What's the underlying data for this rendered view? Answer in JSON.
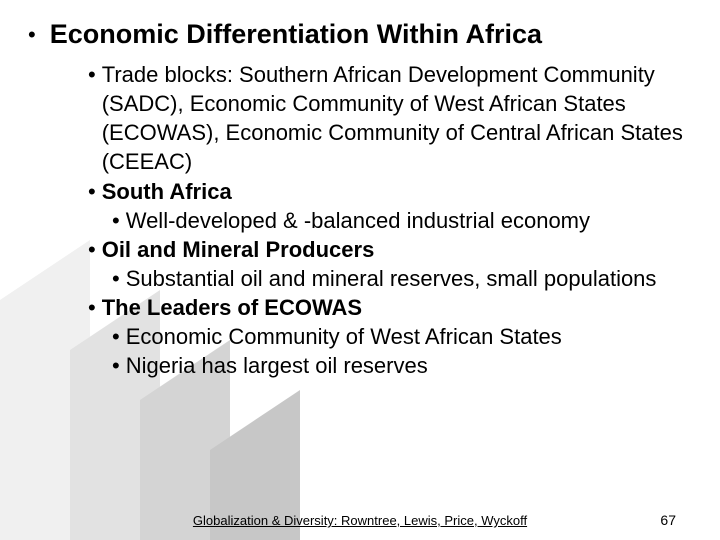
{
  "title": "Economic Differentiation Within Africa",
  "items": [
    {
      "level": 1,
      "bold": false,
      "text": "Trade blocks: Southern African Development Community (SADC), Economic Community of West African States (ECOWAS), Economic Community of Central African States (CEEAC)"
    },
    {
      "level": 1,
      "bold": true,
      "text": "South Africa"
    },
    {
      "level": 2,
      "bold": false,
      "text": "Well-developed & -balanced industrial economy"
    },
    {
      "level": 1,
      "bold": true,
      "text": "Oil and Mineral Producers"
    },
    {
      "level": 2,
      "bold": false,
      "text": "Substantial oil and mineral reserves, small populations"
    },
    {
      "level": 1,
      "bold": true,
      "text": "The Leaders of ECOWAS"
    },
    {
      "level": 2,
      "bold": false,
      "text": "Economic Community of West African States"
    },
    {
      "level": 2,
      "bold": false,
      "text": "Nigeria has largest oil reserves"
    }
  ],
  "footer": "Globalization & Diversity: Rowntree, Lewis, Price, Wyckoff",
  "page_number": "67",
  "bg": {
    "colors": [
      "#f0f0f0",
      "#e2e2e2",
      "#d4d4d4",
      "#c7c7c7"
    ]
  }
}
